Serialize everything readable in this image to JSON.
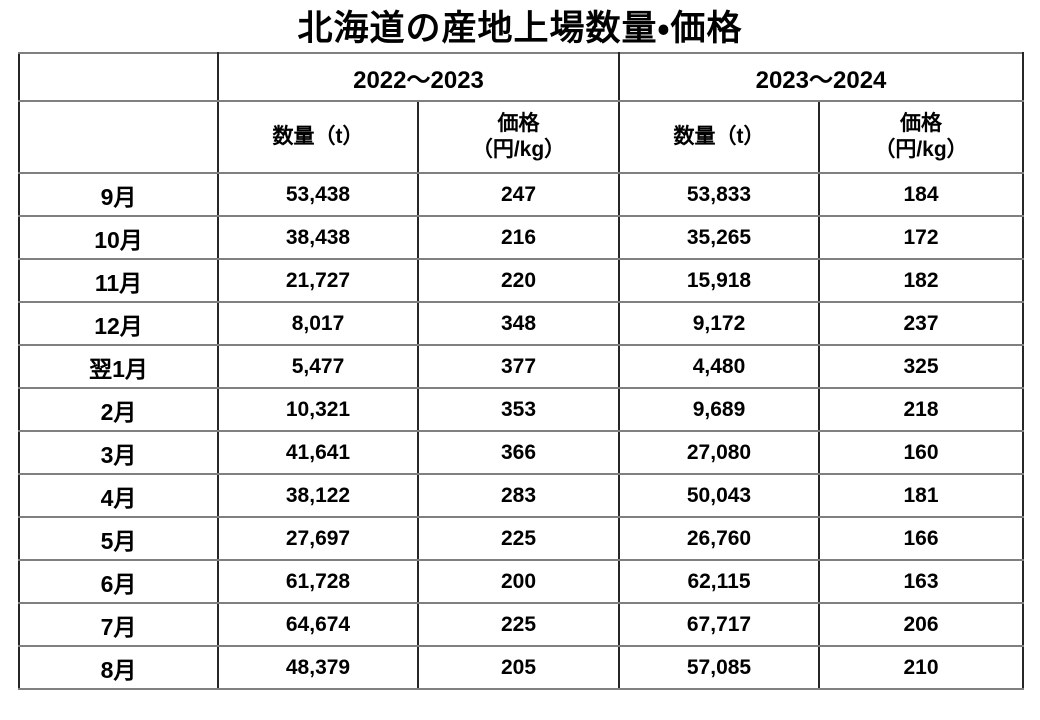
{
  "title": "北海道の産地上場数量・価格",
  "chart_data": {
    "type": "table",
    "title": "北海道の産地上場数量・価格",
    "col_groups": [
      {
        "label": "2022～2023"
      },
      {
        "label": "2023～2024"
      }
    ],
    "sub_headers": {
      "quantity": "数量（t）",
      "price_line1": "価格",
      "price_line2": "（円/kg）"
    },
    "rows": [
      {
        "month": "9月",
        "q_2022": "53,438",
        "p_2022": "247",
        "q_2023": "53,833",
        "p_2023": "184"
      },
      {
        "month": "10月",
        "q_2022": "38,438",
        "p_2022": "216",
        "q_2023": "35,265",
        "p_2023": "172"
      },
      {
        "month": "11月",
        "q_2022": "21,727",
        "p_2022": "220",
        "q_2023": "15,918",
        "p_2023": "182"
      },
      {
        "month": "12月",
        "q_2022": "8,017",
        "p_2022": "348",
        "q_2023": "9,172",
        "p_2023": "237"
      },
      {
        "month": "翌1月",
        "q_2022": "5,477",
        "p_2022": "377",
        "q_2023": "4,480",
        "p_2023": "325"
      },
      {
        "month": "2月",
        "q_2022": "10,321",
        "p_2022": "353",
        "q_2023": "9,689",
        "p_2023": "218"
      },
      {
        "month": "3月",
        "q_2022": "41,641",
        "p_2022": "366",
        "q_2023": "27,080",
        "p_2023": "160"
      },
      {
        "month": "4月",
        "q_2022": "38,122",
        "p_2022": "283",
        "q_2023": "50,043",
        "p_2023": "181"
      },
      {
        "month": "5月",
        "q_2022": "27,697",
        "p_2022": "225",
        "q_2023": "26,760",
        "p_2023": "166"
      },
      {
        "month": "6月",
        "q_2022": "61,728",
        "p_2022": "200",
        "q_2023": "62,115",
        "p_2023": "163"
      },
      {
        "month": "7月",
        "q_2022": "64,674",
        "p_2022": "225",
        "q_2023": "67,717",
        "p_2023": "206"
      },
      {
        "month": "8月",
        "q_2022": "48,379",
        "p_2022": "205",
        "q_2023": "57,085",
        "p_2023": "210"
      }
    ],
    "colors": {
      "text": "#000000",
      "background": "#ffffff",
      "border_horizontal": "#808080",
      "border_vertical": "#262626"
    }
  }
}
